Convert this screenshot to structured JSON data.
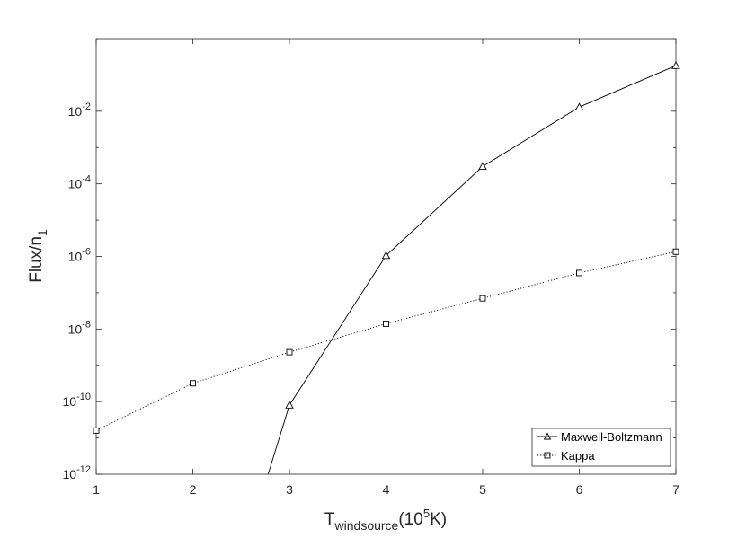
{
  "chart_data": {
    "type": "line",
    "xlabel": {
      "main": "T",
      "subscript": "windsource",
      "unit_prefix": "(10",
      "unit_superscript": "5",
      "unit_suffix": "K)"
    },
    "ylabel": {
      "main": "Flux/n",
      "subscript": "1"
    },
    "xlim": [
      1,
      7
    ],
    "ylim": [
      1e-12,
      1
    ],
    "yscale": "log",
    "grid": false,
    "legend_position": "bottom-right",
    "x_ticks": [
      1,
      2,
      3,
      4,
      5,
      6,
      7
    ],
    "x_tick_labels": [
      "1",
      "2",
      "3",
      "4",
      "5",
      "6",
      "7"
    ],
    "y_ticks": [
      {
        "value": 1e-12,
        "base": "10",
        "exp": "-12"
      },
      {
        "value": 1e-10,
        "base": "10",
        "exp": "-10"
      },
      {
        "value": 1e-08,
        "base": "10",
        "exp": "-8"
      },
      {
        "value": 1e-06,
        "base": "10",
        "exp": "-6"
      },
      {
        "value": 0.0001,
        "base": "10",
        "exp": "-4"
      },
      {
        "value": 0.01,
        "base": "10",
        "exp": "-2"
      }
    ],
    "series": [
      {
        "name": "Maxwell-Boltzmann",
        "marker": "triangle",
        "line_style": "solid",
        "color": "#000000",
        "x": [
          2.78,
          3,
          4,
          5,
          6,
          7
        ],
        "y": [
          1e-12,
          8e-11,
          1.05e-06,
          0.0003,
          0.013,
          0.18
        ],
        "markers": [
          false,
          true,
          true,
          true,
          true,
          true
        ]
      },
      {
        "name": "Kappa",
        "marker": "square",
        "line_style": "dotted",
        "color": "#000000",
        "x": [
          1,
          2,
          3,
          4,
          5,
          6,
          7
        ],
        "y": [
          1.6e-11,
          3.2e-10,
          2.3e-09,
          1.4e-08,
          7e-08,
          3.5e-07,
          1.35e-06
        ],
        "markers": [
          true,
          true,
          true,
          true,
          true,
          true,
          true
        ]
      }
    ]
  }
}
